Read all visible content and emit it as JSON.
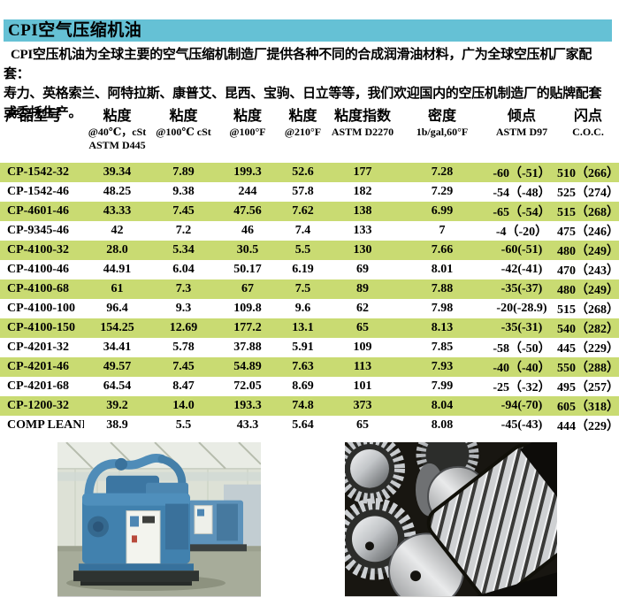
{
  "page": {
    "title": "CPI空气压缩机油",
    "intro_lines": [
      "CPI空压机油为全球主要的空气压缩机制造厂提供各种不同的合成润滑油材料，广为全球空压机厂家配套：",
      "寿力、英格索兰、阿特拉斯、康普艾、昆西、宝驹、日立等等，我们欢迎国内的空压机制造厂的贴牌配套",
      "或委托生产。"
    ]
  },
  "table": {
    "headers": [
      {
        "title": "产品型号",
        "subs": []
      },
      {
        "title": "粘度",
        "subs": [
          "@40℃，cSt",
          "ASTM D445"
        ]
      },
      {
        "title": "粘度",
        "subs": [
          "@100℃ cSt"
        ]
      },
      {
        "title": "粘度",
        "subs": [
          "@100°F"
        ]
      },
      {
        "title": "粘度",
        "subs": [
          "@210°F"
        ]
      },
      {
        "title": "粘度指数",
        "subs": [
          "ASTM D2270"
        ]
      },
      {
        "title": "密度",
        "subs": [
          "1b/gal,60°F"
        ]
      },
      {
        "title": "倾点",
        "subs": [
          "ASTM D97"
        ]
      },
      {
        "title": "闪点",
        "subs": [
          "C.O.C."
        ]
      }
    ],
    "rows": [
      [
        "CP-1542-32",
        "39.34",
        "7.89",
        "199.3",
        "52.6",
        "177",
        "7.28",
        "-60（-51）",
        "510（266）"
      ],
      [
        "CP-1542-46",
        "48.25",
        "9.38",
        "244",
        "57.8",
        "182",
        "7.29",
        "-54（-48）",
        "525（274）"
      ],
      [
        "CP-4601-46",
        "43.33",
        "7.45",
        "47.56",
        "7.62",
        "138",
        "6.99",
        "-65（-54）",
        "515（268）"
      ],
      [
        "CP-9345-46",
        "42",
        "7.2",
        "46",
        "7.4",
        "133",
        "7",
        "-4（-20）",
        "475（246）"
      ],
      [
        "CP-4100-32",
        "28.0",
        "5.34",
        "30.5",
        "5.5",
        "130",
        "7.66",
        "-60(-51)",
        "480（249）"
      ],
      [
        "CP-4100-46",
        "44.91",
        "6.04",
        "50.17",
        "6.19",
        "69",
        "8.01",
        "-42(-41)",
        "470（243）"
      ],
      [
        "CP-4100-68",
        "61",
        "7.3",
        "67",
        "7.5",
        "89",
        "7.88",
        "-35(-37)",
        "480（249）"
      ],
      [
        "CP-4100-100",
        "96.4",
        "9.3",
        "109.8",
        "9.6",
        "62",
        "7.98",
        "-20(-28.9)",
        "515（268）"
      ],
      [
        "CP-4100-150",
        "154.25",
        "12.69",
        "177.2",
        "13.1",
        "65",
        "8.13",
        "-35(-31)",
        "540（282）"
      ],
      [
        "CP-4201-32",
        "34.41",
        "5.78",
        "37.88",
        "5.91",
        "109",
        "7.85",
        "-58（-50）",
        "445（229）"
      ],
      [
        "CP-4201-46",
        "49.57",
        "7.45",
        "54.89",
        "7.63",
        "113",
        "7.93",
        "-40（-40）",
        "550（288）"
      ],
      [
        "CP-4201-68",
        "64.54",
        "8.47",
        "72.05",
        "8.69",
        "101",
        "7.99",
        "-25（-32）",
        "495（257）"
      ],
      [
        "CP-1200-32",
        "39.2",
        "14.0",
        "193.3",
        "74.8",
        "373",
        "8.04",
        "-94(-70)",
        "605（318）"
      ],
      [
        "COMP LEANII",
        "38.9",
        "5.5",
        "43.3",
        "5.64",
        "65",
        "8.08",
        "-45(-43)",
        "444（229）"
      ]
    ]
  },
  "photos": [
    {
      "name": "compressor-photo"
    },
    {
      "name": "gears-photo"
    }
  ],
  "colors": {
    "title_bar_bg": "#65c1d5",
    "row_highlight": "#c9db72",
    "text": "#000000",
    "page_bg": "#ffffff"
  }
}
